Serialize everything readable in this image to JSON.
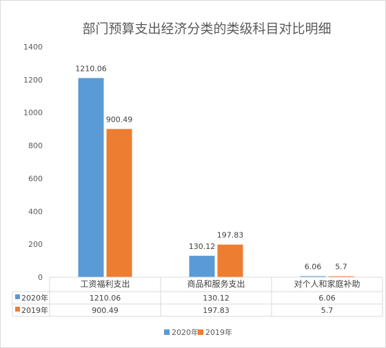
{
  "chart_data": {
    "type": "bar",
    "title": "部门预算支出经济分类的类级科目对比明细",
    "categories": [
      "工资福利支出",
      "商品和服务支出",
      "对个人和家庭补助"
    ],
    "series": [
      {
        "name": "2020年",
        "values": [
          1210.06,
          130.12,
          6.06
        ],
        "labels": [
          "1210.06",
          "130.12",
          "6.06"
        ],
        "color": "#5B9BD5"
      },
      {
        "name": "2019年",
        "values": [
          900.49,
          197.83,
          5.7
        ],
        "labels": [
          "900.49",
          "197.83",
          "5.7"
        ],
        "color": "#ED7D31"
      }
    ],
    "ylim": [
      0,
      1400
    ],
    "yticks": [
      "0",
      "200",
      "400",
      "600",
      "800",
      "1000",
      "1200",
      "1400"
    ],
    "grid": false,
    "legend": "bottom",
    "data_table": true
  }
}
